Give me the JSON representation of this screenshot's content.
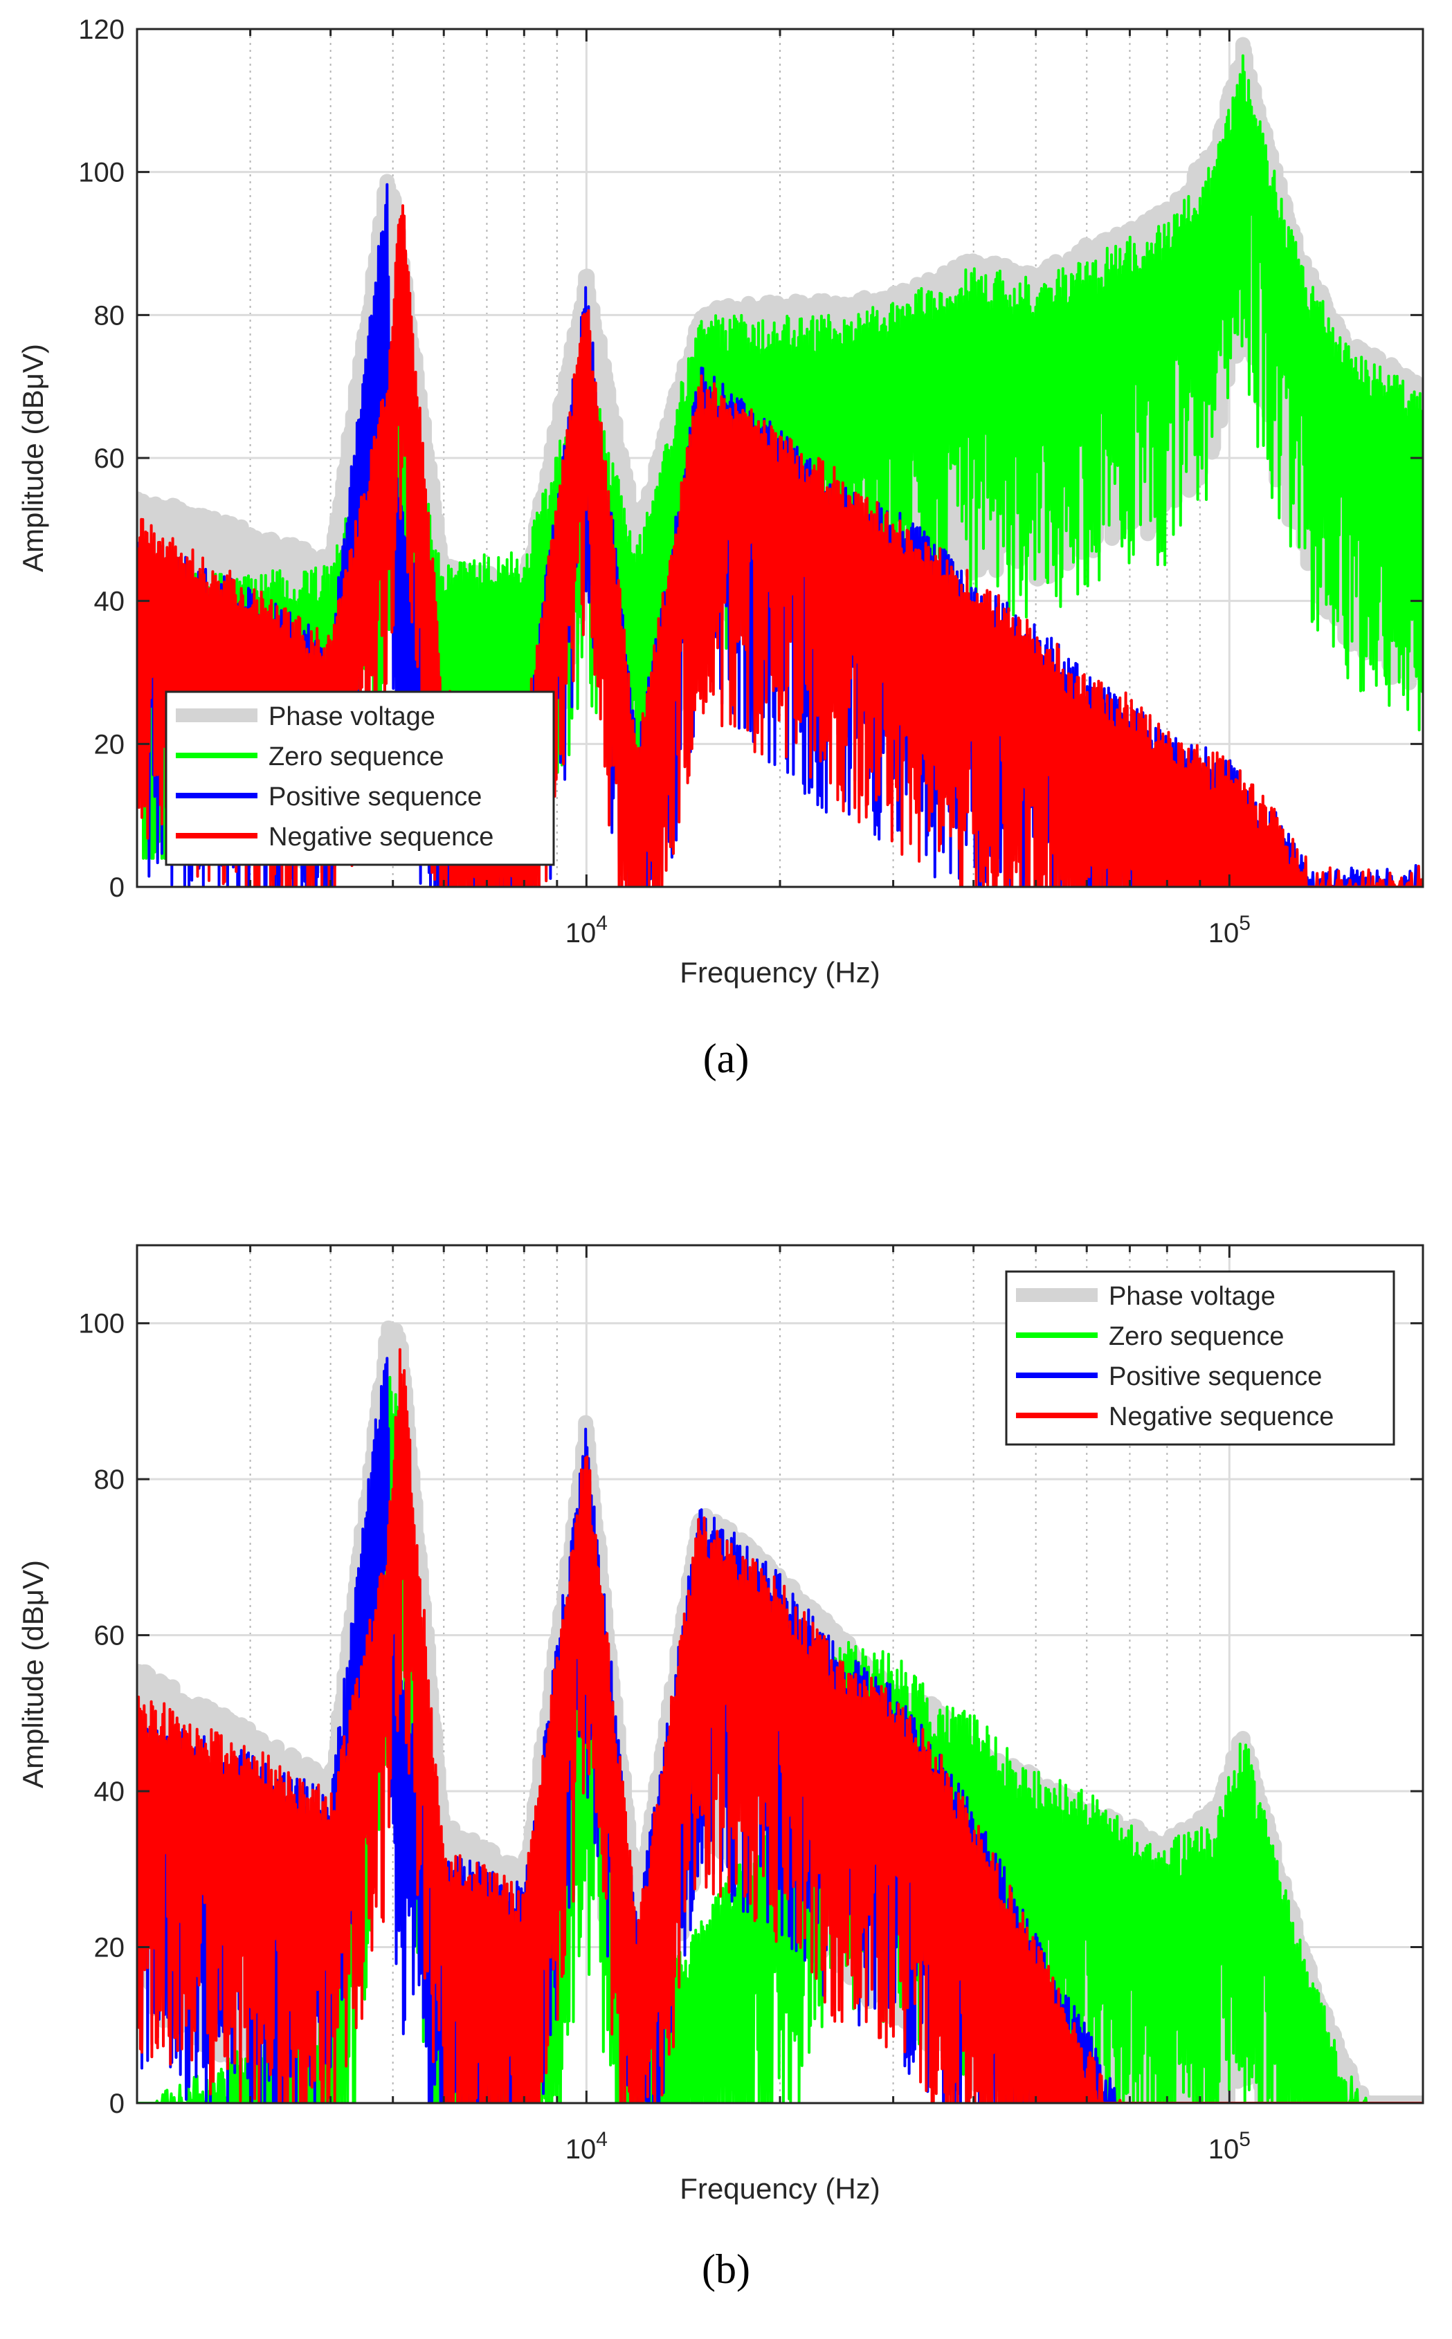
{
  "colors": {
    "phase_voltage": "#d4d4d4",
    "zero_sequence": "#00ff00",
    "positive_sequence": "#0000ff",
    "negative_sequence": "#ff0000",
    "grid": "#dcdcdc",
    "axis": "#262626"
  },
  "chart_data": [
    {
      "type": "line",
      "panel_label": "(a)",
      "xlabel": "Frequency (Hz)",
      "ylabel": "Amplitude (dBμV)",
      "xscale": "log",
      "xlim": [
        2000,
        200000
      ],
      "ylim": [
        0,
        120
      ],
      "yticks": [
        0,
        20,
        40,
        60,
        80,
        100,
        120
      ],
      "xticks": [
        {
          "value": 10000,
          "base": "10",
          "exp": "4"
        },
        {
          "value": 100000,
          "base": "10",
          "exp": "5"
        }
      ],
      "grid": true,
      "legend_location": "lower-left",
      "series": [
        {
          "name": "Phase voltage",
          "color": "#d4d4d4",
          "width": 22,
          "floor_db": 6,
          "points": [
            [
              2000,
              55
            ],
            [
              3000,
              50
            ],
            [
              4000,
              46
            ],
            [
              4900,
              100
            ],
            [
              5000,
              98
            ],
            [
              6000,
              45
            ],
            [
              8000,
              43
            ],
            [
              10000,
              86
            ],
            [
              12000,
              50
            ],
            [
              15000,
              81
            ],
            [
              20000,
              82
            ],
            [
              25000,
              82
            ],
            [
              30000,
              83
            ],
            [
              40000,
              88
            ],
            [
              50000,
              86
            ],
            [
              60000,
              90
            ],
            [
              70000,
              92
            ],
            [
              80000,
              95
            ],
            [
              95000,
              104
            ],
            [
              105000,
              118
            ],
            [
              115000,
              104
            ],
            [
              130000,
              88
            ],
            [
              150000,
              78
            ],
            [
              200000,
              70
            ]
          ]
        },
        {
          "name": "Zero sequence",
          "color": "#00ff00",
          "width": 4,
          "floor_db": 4,
          "points": [
            [
              2000,
              45
            ],
            [
              3000,
              44
            ],
            [
              4000,
              45
            ],
            [
              4900,
              70
            ],
            [
              5000,
              72
            ],
            [
              6000,
              46
            ],
            [
              8000,
              47
            ],
            [
              10000,
              74
            ],
            [
              12000,
              48
            ],
            [
              15000,
              80
            ],
            [
              20000,
              80
            ],
            [
              25000,
              80
            ],
            [
              30000,
              82
            ],
            [
              40000,
              87
            ],
            [
              50000,
              85
            ],
            [
              60000,
              88
            ],
            [
              70000,
              91
            ],
            [
              80000,
              93
            ],
            [
              95000,
              102
            ],
            [
              105000,
              117
            ],
            [
              115000,
              103
            ],
            [
              130000,
              87
            ],
            [
              150000,
              77
            ],
            [
              200000,
              69
            ]
          ]
        },
        {
          "name": "Positive sequence",
          "color": "#0000ff",
          "width": 4,
          "floor_db": 0,
          "points": [
            [
              2000,
              50
            ],
            [
              3000,
              42
            ],
            [
              4000,
              35
            ],
            [
              4900,
              100
            ],
            [
              5000,
              60
            ],
            [
              6000,
              28
            ],
            [
              8000,
              22
            ],
            [
              10000,
              85
            ],
            [
              12000,
              20
            ],
            [
              15000,
              73
            ],
            [
              20000,
              64
            ],
            [
              25000,
              56
            ],
            [
              30000,
              53
            ],
            [
              35000,
              49
            ],
            [
              40000,
              42
            ],
            [
              45000,
              40
            ],
            [
              50000,
              37
            ],
            [
              60000,
              30
            ],
            [
              70000,
              26
            ],
            [
              80000,
              22
            ],
            [
              100000,
              18
            ],
            [
              120000,
              10
            ],
            [
              135000,
              3
            ]
          ]
        },
        {
          "name": "Negative sequence",
          "color": "#ff0000",
          "width": 4,
          "floor_db": 0,
          "points": [
            [
              2000,
              52
            ],
            [
              3000,
              43
            ],
            [
              4000,
              35
            ],
            [
              4900,
              72
            ],
            [
              5150,
              99
            ],
            [
              6000,
              28
            ],
            [
              8000,
              22
            ],
            [
              10000,
              84
            ],
            [
              12000,
              20
            ],
            [
              15000,
              72
            ],
            [
              20000,
              64
            ],
            [
              25000,
              58
            ],
            [
              30000,
              52
            ],
            [
              35000,
              48
            ],
            [
              40000,
              44
            ],
            [
              45000,
              40
            ],
            [
              50000,
              37
            ],
            [
              60000,
              30
            ],
            [
              70000,
              27
            ],
            [
              80000,
              22
            ],
            [
              100000,
              18
            ],
            [
              120000,
              10
            ],
            [
              135000,
              3
            ]
          ]
        }
      ]
    },
    {
      "type": "line",
      "panel_label": "(b)",
      "xlabel": "Frequency (Hz)",
      "ylabel": "Amplitude (dBμV)",
      "xscale": "log",
      "xlim": [
        2000,
        200000
      ],
      "ylim": [
        0,
        110
      ],
      "yticks": [
        0,
        20,
        40,
        60,
        80,
        100
      ],
      "xticks": [
        {
          "value": 10000,
          "base": "10",
          "exp": "4"
        },
        {
          "value": 100000,
          "base": "10",
          "exp": "5"
        }
      ],
      "grid": true,
      "legend_location": "top-right",
      "series": [
        {
          "name": "Phase voltage",
          "color": "#d4d4d4",
          "width": 22,
          "floor_db": 0,
          "points": [
            [
              2000,
              56
            ],
            [
              3000,
              48
            ],
            [
              4000,
              42
            ],
            [
              4900,
              100
            ],
            [
              5150,
              99
            ],
            [
              6000,
              36
            ],
            [
              8000,
              30
            ],
            [
              10000,
              88
            ],
            [
              12000,
              26
            ],
            [
              15000,
              77
            ],
            [
              20000,
              68
            ],
            [
              25000,
              60
            ],
            [
              30000,
              53
            ],
            [
              35000,
              51
            ],
            [
              40000,
              46
            ],
            [
              45000,
              44
            ],
            [
              50000,
              42
            ],
            [
              60000,
              38
            ],
            [
              70000,
              36
            ],
            [
              80000,
              34
            ],
            [
              95000,
              38
            ],
            [
              105000,
              48
            ],
            [
              115000,
              36
            ],
            [
              130000,
              20
            ],
            [
              150000,
              6
            ],
            [
              165000,
              0
            ]
          ]
        },
        {
          "name": "Zero sequence",
          "color": "#00ff00",
          "width": 4,
          "floor_db": 0,
          "points": [
            [
              2000,
              0
            ],
            [
              2400,
              3
            ],
            [
              3000,
              8
            ],
            [
              4000,
              12
            ],
            [
              4900,
              94
            ],
            [
              5100,
              92
            ],
            [
              6000,
              18
            ],
            [
              8000,
              14
            ],
            [
              10000,
              66
            ],
            [
              12000,
              10
            ],
            [
              15000,
              24
            ],
            [
              20000,
              38
            ],
            [
              25000,
              60
            ],
            [
              30000,
              58
            ],
            [
              35000,
              52
            ],
            [
              40000,
              50
            ],
            [
              45000,
              46
            ],
            [
              50000,
              43
            ],
            [
              60000,
              40
            ],
            [
              70000,
              36
            ],
            [
              80000,
              34
            ],
            [
              95000,
              36
            ],
            [
              105000,
              48
            ],
            [
              115000,
              36
            ],
            [
              130000,
              20
            ],
            [
              150000,
              6
            ],
            [
              165000,
              0
            ]
          ]
        },
        {
          "name": "Positive sequence",
          "color": "#0000ff",
          "width": 4,
          "floor_db": 0,
          "points": [
            [
              2000,
              50
            ],
            [
              3000,
              45
            ],
            [
              4000,
              40
            ],
            [
              4900,
              100
            ],
            [
              5000,
              62
            ],
            [
              6000,
              33
            ],
            [
              8000,
              28
            ],
            [
              10000,
              88
            ],
            [
              12000,
              24
            ],
            [
              15000,
              77
            ],
            [
              20000,
              68
            ],
            [
              25000,
              58
            ],
            [
              30000,
              54
            ],
            [
              35000,
              46
            ],
            [
              40000,
              38
            ],
            [
              45000,
              30
            ],
            [
              50000,
              22
            ],
            [
              55000,
              15
            ],
            [
              60000,
              10
            ],
            [
              65000,
              4
            ],
            [
              68000,
              0
            ]
          ]
        },
        {
          "name": "Negative sequence",
          "color": "#ff0000",
          "width": 4,
          "floor_db": 0,
          "points": [
            [
              2000,
              53
            ],
            [
              3000,
              46
            ],
            [
              4000,
              40
            ],
            [
              4900,
              72
            ],
            [
              5150,
              99
            ],
            [
              6000,
              33
            ],
            [
              8000,
              28
            ],
            [
              10000,
              86
            ],
            [
              12000,
              24
            ],
            [
              15000,
              76
            ],
            [
              20000,
              67
            ],
            [
              25000,
              57
            ],
            [
              30000,
              53
            ],
            [
              35000,
              46
            ],
            [
              40000,
              37
            ],
            [
              45000,
              29
            ],
            [
              50000,
              21
            ],
            [
              55000,
              14
            ],
            [
              60000,
              8
            ],
            [
              65000,
              3
            ],
            [
              68000,
              0
            ]
          ]
        }
      ]
    }
  ]
}
